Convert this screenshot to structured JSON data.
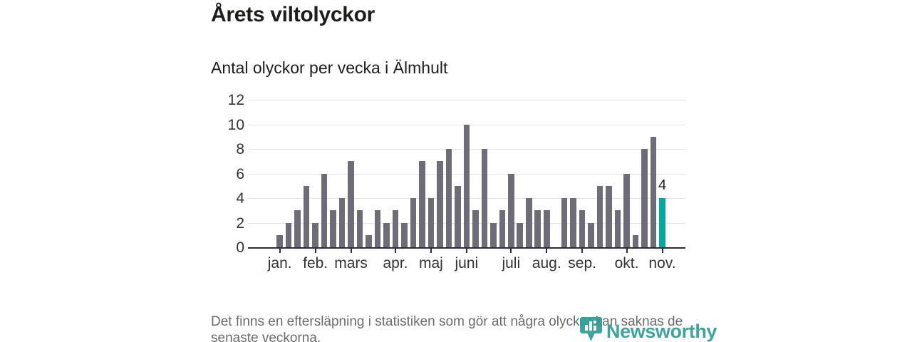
{
  "header": {
    "title": "Årets viltolyckor",
    "subtitle": "Antal olyckor per vecka i Älmhult"
  },
  "footer": {
    "note": "Det finns en eftersläpning i statistiken som gör att några olyckor kan saknas de senaste veckorna."
  },
  "logo": {
    "name": "Newsworthy",
    "color": "#2d9d95"
  },
  "colors": {
    "bar": "#6e6d77",
    "highlight": "#00a79d",
    "axis": "#2f2e38",
    "gridline": "#e3e3e3",
    "text_dark": "#1d1d1b",
    "text_axis": "#333333",
    "text_footer": "#6b6b6b"
  },
  "chart_data": {
    "type": "bar",
    "title": "Årets viltolyckor",
    "subtitle": "Antal olyckor per vecka i Älmhult",
    "x_unit": "vecka",
    "values": [
      1,
      2,
      3,
      5,
      2,
      6,
      3,
      4,
      7,
      3,
      1,
      3,
      2,
      3,
      2,
      4,
      7,
      4,
      7,
      8,
      5,
      10,
      3,
      8,
      2,
      3,
      6,
      2,
      4,
      3,
      3,
      0,
      4,
      4,
      3,
      2,
      5,
      5,
      3,
      6,
      1,
      8,
      9,
      4
    ],
    "highlight_index": 43,
    "highlight_label": "4",
    "ylim": [
      0,
      12
    ],
    "yticks": [
      0,
      2,
      4,
      6,
      8,
      10,
      12
    ],
    "grid": "horizontal",
    "legend": "none",
    "month_ticks": [
      {
        "week_index": 0,
        "label": "jan."
      },
      {
        "week_index": 4,
        "label": "feb."
      },
      {
        "week_index": 8,
        "label": "mars"
      },
      {
        "week_index": 13,
        "label": "apr."
      },
      {
        "week_index": 17,
        "label": "maj"
      },
      {
        "week_index": 21,
        "label": "juni"
      },
      {
        "week_index": 26,
        "label": "juli"
      },
      {
        "week_index": 30,
        "label": "aug."
      },
      {
        "week_index": 34,
        "label": "sep."
      },
      {
        "week_index": 39,
        "label": "okt."
      },
      {
        "week_index": 43,
        "label": "nov."
      }
    ]
  }
}
